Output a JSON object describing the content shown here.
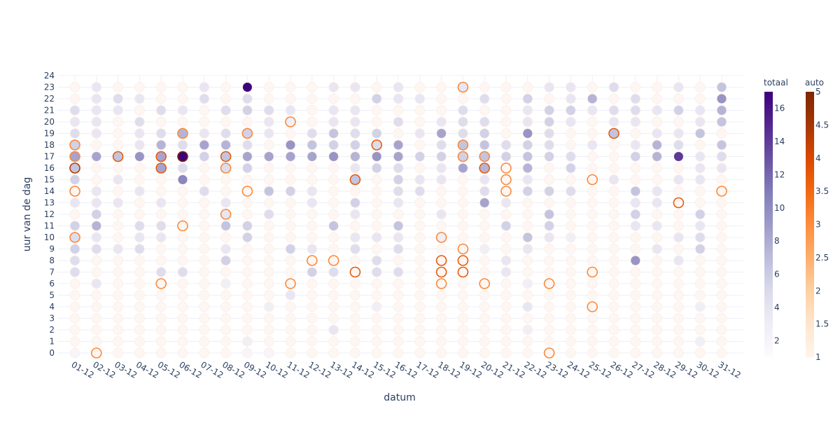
{
  "chart_data": {
    "type": "scatter",
    "xlabel": "datum",
    "ylabel": "uur van de dag",
    "x_categories": [
      "01-12",
      "02-12",
      "03-12",
      "04-12",
      "05-12",
      "06-12",
      "07-12",
      "08-12",
      "09-12",
      "10-12",
      "11-12",
      "12-12",
      "13-12",
      "14-12",
      "15-12",
      "16-12",
      "17-12",
      "18-12",
      "19-12",
      "20-12",
      "21-12",
      "22-12",
      "23-12",
      "24-12",
      "25-12",
      "26-12",
      "27-12",
      "28-12",
      "29-12",
      "30-12",
      "31-12"
    ],
    "y_ticks": [
      0,
      1,
      2,
      3,
      4,
      5,
      6,
      7,
      8,
      9,
      10,
      11,
      12,
      13,
      14,
      15,
      16,
      17,
      18,
      19,
      20,
      21,
      22,
      23,
      24
    ],
    "grid": true,
    "series": [
      {
        "name": "totaal",
        "colorscale": "Purples",
        "cmin": 1,
        "cmax": 17,
        "colorbar_ticks": [
          2,
          4,
          6,
          8,
          10,
          12,
          14,
          16
        ],
        "colors": {
          "low": "#fcfbfd",
          "mid": "#9e9ac8",
          "high": "#3f007d"
        },
        "rows": {
          "0": {
            "1": 1,
            "9": 1,
            "10": 1
          },
          "1": {
            "9": 2,
            "30": 2
          },
          "2": {
            "13": 3,
            "22": 2
          },
          "4": {
            "10": 2,
            "15": 2,
            "22": 3,
            "30": 2
          },
          "5": {
            "11": 3
          },
          "6": {
            "2": 3,
            "8": 2,
            "22": 2
          },
          "7": {
            "1": 4,
            "5": 4,
            "6": 4,
            "12": 5,
            "13": 4,
            "15": 4,
            "16": 4,
            "21": 3
          },
          "8": {
            "1": 4,
            "8": 5,
            "15": 4,
            "21": 3,
            "27": 9,
            "29": 3
          },
          "9": {
            "1": 5,
            "2": 4,
            "3": 3,
            "4": 4,
            "8": 3,
            "11": 5,
            "12": 3,
            "14": 4,
            "16": 4,
            "20": 2,
            "22": 3,
            "28": 3,
            "30": 5
          },
          "10": {
            "1": 4,
            "2": 3,
            "4": 3,
            "5": 3,
            "9": 5,
            "14": 3,
            "15": 3,
            "16": 3,
            "18": 2,
            "22": 6,
            "23": 3,
            "24": 2,
            "29": 3,
            "30": 4
          },
          "11": {
            "1": 5,
            "2": 7,
            "4": 4,
            "5": 4,
            "8": 6,
            "9": 5,
            "13": 6,
            "16": 6,
            "21": 5,
            "23": 5,
            "27": 3,
            "28": 3,
            "30": 3
          },
          "12": {
            "2": 5,
            "8": 3,
            "10": 4,
            "14": 3,
            "18": 3,
            "23": 6,
            "27": 5,
            "30": 5
          },
          "13": {
            "1": 3,
            "2": 3,
            "3": 3,
            "5": 3,
            "8": 3,
            "12": 3,
            "14": 5,
            "16": 3,
            "20": 8,
            "21": 3,
            "27": 3,
            "28": 3
          },
          "14": {
            "2": 3,
            "4": 3,
            "7": 4,
            "10": 6,
            "11": 5,
            "12": 3,
            "16": 4,
            "17": 4,
            "20": 4,
            "22": 5,
            "23": 5,
            "24": 4,
            "27": 6,
            "28": 3
          },
          "15": {
            "1": 5,
            "3": 3,
            "6": 10,
            "14": 6,
            "16": 5,
            "17": 3,
            "18": 3,
            "20": 3,
            "22": 3,
            "26": 3,
            "29": 3,
            "30": 3
          },
          "16": {
            "1": 6,
            "5": 8,
            "6": 4,
            "8": 4,
            "9": 5,
            "14": 3,
            "15": 5,
            "16": 4,
            "18": 3,
            "19": 8,
            "20": 7,
            "22": 7,
            "24": 5,
            "30": 3,
            "31": 3
          },
          "17": {
            "1": 8,
            "2": 8,
            "3": 6,
            "4": 9,
            "5": 8,
            "6": 17,
            "7": 5,
            "8": 6,
            "9": 8,
            "10": 8,
            "11": 8,
            "12": 8,
            "13": 9,
            "14": 7,
            "15": 9,
            "16": 8,
            "17": 5,
            "18": 5,
            "19": 5,
            "20": 6,
            "21": 5,
            "22": 6,
            "23": 5,
            "24": 4,
            "27": 5,
            "28": 7,
            "29": 14,
            "30": 3,
            "31": 4
          },
          "18": {
            "1": 5,
            "4": 3,
            "5": 7,
            "6": 4,
            "7": 8,
            "8": 7,
            "9": 4,
            "11": 9,
            "12": 6,
            "13": 5,
            "14": 5,
            "15": 4,
            "16": 8,
            "18": 4,
            "19": 6,
            "20": 6,
            "21": 4,
            "22": 5,
            "23": 4,
            "25": 3,
            "27": 3,
            "28": 7,
            "29": 4,
            "31": 6
          },
          "19": {
            "1": 4,
            "2": 3,
            "4": 3,
            "5": 4,
            "6": 7,
            "7": 3,
            "8": 4,
            "9": 5,
            "10": 3,
            "12": 4,
            "13": 6,
            "14": 4,
            "15": 5,
            "17": 3,
            "18": 8,
            "19": 4,
            "20": 5,
            "22": 9,
            "23": 4,
            "26": 6,
            "28": 3,
            "29": 3,
            "30": 6
          },
          "20": {
            "1": 3,
            "2": 3,
            "4": 4,
            "10": 3,
            "11": 2,
            "13": 3,
            "14": 3,
            "16": 4,
            "18": 3,
            "19": 4,
            "20": 4,
            "22": 3,
            "23": 5,
            "24": 3,
            "26": 3,
            "27": 3,
            "30": 3,
            "31": 6
          },
          "21": {
            "1": 4,
            "2": 3,
            "3": 3,
            "5": 4,
            "6": 3,
            "8": 4,
            "9": 5,
            "10": 4,
            "11": 3,
            "13": 3,
            "14": 3,
            "19": 4,
            "22": 3,
            "23": 5,
            "24": 5,
            "25": 3,
            "26": 4,
            "27": 4,
            "28": 3,
            "29": 5,
            "30": 3,
            "31": 7
          },
          "22": {
            "2": 3,
            "3": 4,
            "4": 3,
            "7": 4,
            "9": 4,
            "15": 5,
            "16": 3,
            "17": 3,
            "20": 4,
            "22": 5,
            "24": 3,
            "25": 7,
            "27": 4,
            "31": 9
          },
          "23": {
            "2": 3,
            "7": 3,
            "9": 17,
            "13": 3,
            "14": 3,
            "16": 3,
            "19": 3,
            "23": 3,
            "24": 3,
            "26": 4,
            "29": 3,
            "31": 6
          }
        }
      },
      {
        "name": "auto",
        "colorscale": "Oranges",
        "cmin": 1,
        "cmax": 5,
        "colorbar_ticks": [
          1,
          1.5,
          2,
          2.5,
          3,
          3.5,
          4,
          4.5,
          5
        ],
        "colors": {
          "low": "#fff5eb",
          "mid": "#fd8d3c",
          "high": "#7f2704"
        },
        "rows": {
          "0": {
            "2": 2,
            "23": 2
          },
          "4": {
            "25": 2
          },
          "6": {
            "5": 2,
            "11": 2,
            "18": 2,
            "20": 2,
            "23": 2
          },
          "7": {
            "14": 3,
            "18": 3,
            "19": 3,
            "25": 2
          },
          "8": {
            "12": 2,
            "13": 2,
            "18": 3,
            "19": 3
          },
          "9": {
            "19": 2
          },
          "10": {
            "1": 2,
            "18": 2
          },
          "11": {
            "6": 2
          },
          "12": {
            "8": 2
          },
          "13": {
            "29": 3
          },
          "14": {
            "1": 2,
            "9": 2,
            "21": 2,
            "31": 2
          },
          "15": {
            "14": 3,
            "21": 2,
            "25": 2
          },
          "16": {
            "1": 4,
            "5": 3,
            "8": 2,
            "20": 3,
            "21": 2
          },
          "17": {
            "1": 2,
            "3": 3,
            "5": 3,
            "6": 5,
            "8": 3,
            "19": 2,
            "20": 2
          },
          "18": {
            "1": 2,
            "15": 3,
            "19": 2
          },
          "19": {
            "6": 2,
            "9": 2,
            "26": 3
          },
          "20": {
            "11": 2
          },
          "23": {
            "19": 2
          }
        }
      }
    ]
  }
}
